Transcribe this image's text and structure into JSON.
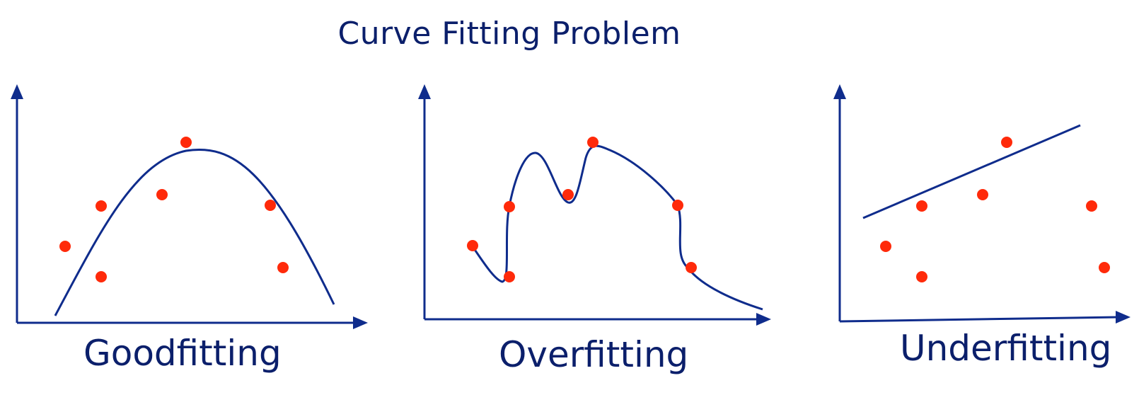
{
  "title": "Curve Fitting Problem",
  "panels": {
    "good": {
      "caption": "Goodfitting",
      "fit": "parabola"
    },
    "over": {
      "caption": "Overfitting",
      "fit": "interpolating-curve"
    },
    "under": {
      "caption": "Underfitting",
      "fit": "straight-line"
    }
  },
  "colors": {
    "axes_and_curves": "#0f2c8c",
    "points": "#ff2a0a",
    "text": "#0b1f6b"
  }
}
